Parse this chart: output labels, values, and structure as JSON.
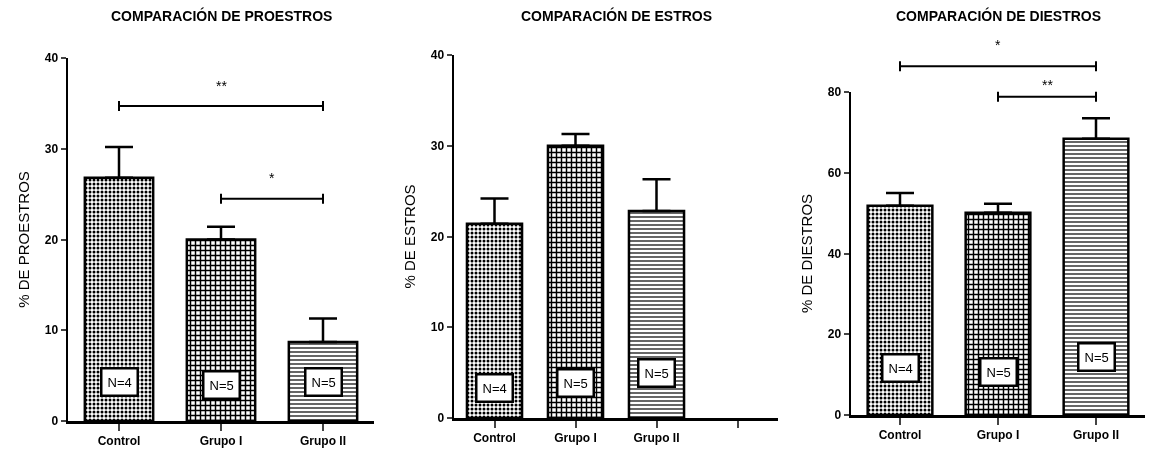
{
  "chart_data": [
    {
      "type": "bar",
      "title": "COMPARACIÓN DE PROESTROS",
      "ylabel": "% DE PROESTROS",
      "categories": [
        "Control",
        "Grupo I",
        "Grupo II"
      ],
      "values": [
        26.8,
        20.0,
        8.7
      ],
      "errors": [
        [
          26.8,
          30.2
        ],
        [
          20.0,
          21.4
        ],
        [
          8.7,
          11.3
        ]
      ],
      "color": "#000000",
      "ylim": [
        0,
        40
      ],
      "yticks": [
        0,
        10,
        20,
        30,
        40
      ],
      "grid": false,
      "legend": false,
      "annotations": [
        "**",
        "*",
        {
          "text": "N=4",
          "x": "Control",
          "y": 4.3
        },
        {
          "text": "N=5",
          "x": "Grupo I",
          "y": 4.0
        },
        {
          "text": "N=5",
          "x": "Grupo II",
          "y": 4.3
        }
      ]
    },
    {
      "type": "bar",
      "title": "COMPARACIÓN DE ESTROS",
      "ylabel": "% DE ESTROS",
      "categories": [
        "Control",
        "Grupo I",
        "Grupo II",
        null
      ],
      "values": [
        21.4,
        30.0,
        22.8,
        null
      ],
      "errors": [
        [
          21.4,
          24.2
        ],
        [
          30.0,
          31.3
        ],
        [
          22.8,
          26.3
        ],
        null
      ],
      "color": "#000000",
      "ylim": [
        0,
        40
      ],
      "yticks": [
        0,
        10,
        20,
        30,
        40
      ],
      "grid": false,
      "legend": false,
      "annotations": [
        {
          "text": "N=4",
          "x": "Control",
          "y": 3.3
        },
        {
          "text": "N=5",
          "x": "Grupo I",
          "y": 3.9
        },
        {
          "text": "N=5",
          "x": "Grupo II",
          "y": 5.0
        }
      ]
    },
    {
      "type": "bar",
      "title": "COMPARACIÓN DE DIESTROS",
      "ylabel": "% DE DIESTROS",
      "categories": [
        "Control",
        "Grupo I",
        "Grupo II"
      ],
      "values": [
        51.8,
        50.1,
        68.4
      ],
      "errors": [
        [
          51.8,
          55.0
        ],
        [
          50.1,
          52.3
        ],
        [
          68.4,
          73.5
        ]
      ],
      "color": "#000000",
      "ylim": [
        0,
        80
      ],
      "yticks": [
        0,
        20,
        40,
        60,
        80
      ],
      "grid": false,
      "legend": false,
      "annotations": [
        "*",
        "**",
        {
          "text": "N=4",
          "x": "Control",
          "y": 11.6
        },
        {
          "text": "N=5",
          "x": "Grupo I",
          "y": 10.7
        },
        {
          "text": "N=5",
          "x": "Grupo II",
          "y": 14.4
        }
      ]
    }
  ]
}
